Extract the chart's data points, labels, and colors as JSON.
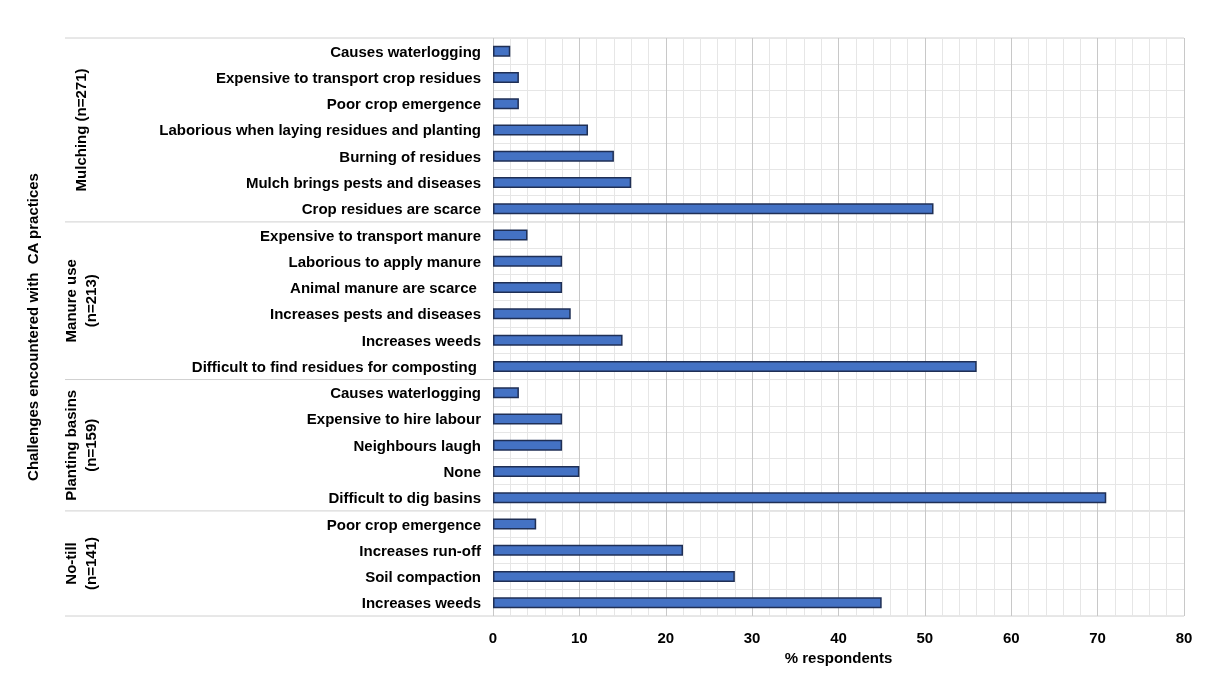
{
  "chart_data": {
    "type": "bar",
    "orientation": "horizontal",
    "xlabel": "% respondents",
    "categories": [
      "Causes waterlogging",
      "Expensive to transport crop residues",
      "Poor crop emergence",
      "Laborious when laying residues and planting",
      "Burning of residues",
      "Mulch brings pests and diseases",
      "Crop residues are scarce",
      "Expensive to transport manure",
      "Laborious to apply manure",
      "Animal manure are scarce ",
      "Increases pests and diseases",
      "Increases weeds",
      "Difficult to find residues for composting ",
      "Causes waterlogging",
      "Expensive to hire labour",
      "Neighbours laugh",
      "None",
      "Difficult to dig basins",
      "Poor crop emergence",
      "Increases run-off",
      "Soil compaction",
      "Increases weeds"
    ],
    "values": [
      2,
      3,
      3,
      11,
      14,
      16,
      51,
      4,
      8,
      8,
      9,
      15,
      56,
      3,
      8,
      8,
      10,
      71,
      5,
      22,
      28,
      45
    ],
    "color": "#4472c4",
    "xlim": [
      0,
      80
    ],
    "xticks": [
      0,
      10,
      20,
      30,
      40,
      50,
      60,
      70,
      80
    ],
    "grid": true,
    "annotations": [
      "Mulching (n=271)",
      "Manure use\n(n=213)",
      "Planting basins\n(n=159)",
      "No-till\n(n=141)",
      "Challenges encountered with  CA practices"
    ]
  }
}
